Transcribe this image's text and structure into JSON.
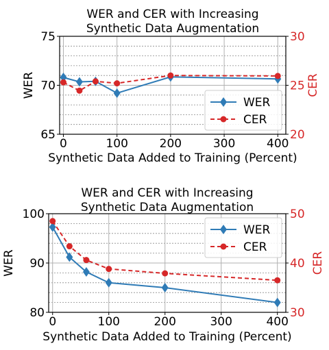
{
  "chart_data": [
    {
      "type": "line",
      "title_line1": "WER and CER with Increasing",
      "title_line2": "Synthetic Data Augmentation",
      "xlabel": "Synthetic Data Added to Training (Percent)",
      "ylabel": "WER",
      "ylabel_right": "CER",
      "x": [
        0,
        30,
        60,
        100,
        200,
        400
      ],
      "xlim": [
        -7,
        415
      ],
      "xticks": [
        0,
        100,
        200,
        300,
        400
      ],
      "ylim": [
        65,
        75
      ],
      "yticks": [
        65,
        70,
        75
      ],
      "ylim_right": [
        20,
        30
      ],
      "yticks_right": [
        20,
        25,
        30
      ],
      "grid": true,
      "legend_position": "lower-right",
      "series": [
        {
          "name": "WER",
          "axis": "left",
          "color": "#2f7bb6",
          "marker": "diamond",
          "linestyle": "solid",
          "values": [
            70.8,
            70.35,
            70.4,
            69.2,
            70.85,
            70.65
          ]
        },
        {
          "name": "CER",
          "axis": "right",
          "color": "#d62728",
          "marker": "circle",
          "linestyle": "dashed",
          "values": [
            25.3,
            24.45,
            25.4,
            25.2,
            26.0,
            25.95
          ]
        }
      ]
    },
    {
      "type": "line",
      "title_line1": "WER and CER with Increasing",
      "title_line2": "Synthetic Data Augmentation",
      "xlabel": "Synthetic Data Added to Training (Percent)",
      "ylabel": "WER",
      "ylabel_right": "CER",
      "x": [
        0,
        30,
        60,
        100,
        200,
        400
      ],
      "xlim": [
        -7,
        415
      ],
      "xticks": [
        0,
        100,
        200,
        300,
        400
      ],
      "ylim": [
        80,
        100
      ],
      "yticks": [
        80,
        90,
        100
      ],
      "ylim_right": [
        30,
        50
      ],
      "yticks_right": [
        30,
        40,
        50
      ],
      "grid": true,
      "legend_position": "upper-right",
      "series": [
        {
          "name": "WER",
          "axis": "left",
          "color": "#2f7bb6",
          "marker": "diamond",
          "linestyle": "solid",
          "values": [
            97.3,
            91.2,
            88.2,
            86.0,
            85.0,
            82.0
          ]
        },
        {
          "name": "CER",
          "axis": "right",
          "color": "#d62728",
          "marker": "circle",
          "linestyle": "dashed",
          "values": [
            48.5,
            43.4,
            40.6,
            38.8,
            37.9,
            36.5
          ]
        }
      ]
    }
  ],
  "colors": {
    "left_axis": "#000000",
    "right_axis": "#d62728",
    "grid": "#b0b0b0"
  }
}
